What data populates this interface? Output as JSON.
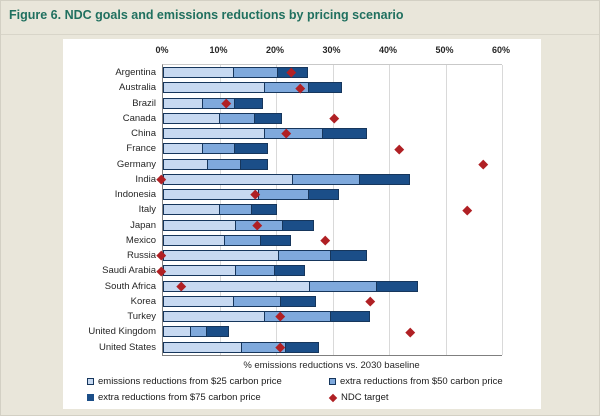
{
  "title": "Figure 6. NDC goals and emissions reductions by pricing scenario",
  "axis": {
    "x_label": "% emissions reductions vs. 2030 baseline",
    "x_ticks": [
      "0%",
      "10%",
      "20%",
      "30%",
      "40%",
      "50%",
      "60%"
    ],
    "x_max": 60
  },
  "legend": {
    "items": [
      {
        "label": "emissions reductions from $25 carbon price",
        "marker": "square",
        "color_key": "bar_25"
      },
      {
        "label": "extra reductions from $50 carbon price",
        "marker": "square",
        "color_key": "bar_50"
      },
      {
        "label": "extra reductions from $75 carbon price",
        "marker": "square",
        "color_key": "bar_75"
      },
      {
        "label": "NDC target",
        "marker": "diamond",
        "color_key": "ndc_red"
      }
    ]
  },
  "colors": {
    "title_teal": "#20705f",
    "page_background": "#e9e6da",
    "panel_background": "#ffffff",
    "bar_25": "#c7d9f1",
    "bar_50": "#7fa9dc",
    "bar_75": "#1b4e88",
    "bar_border": "#16365c",
    "ndc_red": "#b02024",
    "gridline": "#d9d9d9",
    "axis_line": "#7f7f7f"
  },
  "chart_data": {
    "type": "bar",
    "orientation": "horizontal",
    "stacked": true,
    "title": "Figure 6. NDC goals and emissions reductions by pricing scenario",
    "xlabel": "% emissions reductions vs. 2030 baseline",
    "xlim": [
      0,
      60
    ],
    "grid": true,
    "legend_position": "bottom",
    "categories": [
      "Argentina",
      "Australia",
      "Brazil",
      "Canada",
      "China",
      "France",
      "Germany",
      "India",
      "Indonesia",
      "Italy",
      "Japan",
      "Mexico",
      "Russia",
      "Saudi Arabia",
      "South Africa",
      "Korea",
      "Turkey",
      "United Kingdom",
      "United States"
    ],
    "series": [
      {
        "name": "emissions reductions from $25 carbon price",
        "values": [
          12.5,
          18,
          7,
          10,
          18,
          7,
          8,
          23,
          17,
          10,
          13,
          11,
          20.5,
          13,
          26,
          12.5,
          18,
          5,
          14
        ]
      },
      {
        "name": "extra reductions from $50 carbon price",
        "values": [
          8,
          8,
          6,
          6.5,
          10.5,
          6,
          6,
          12,
          9,
          6,
          8.5,
          6.5,
          9.5,
          7,
          12,
          8.5,
          12,
          3,
          8
        ]
      },
      {
        "name": "extra reductions from $75 carbon price",
        "values": [
          5.5,
          6,
          5,
          5,
          8,
          6,
          5,
          9,
          5.5,
          4.5,
          5.5,
          5.5,
          6.5,
          5.5,
          7.5,
          6.5,
          7,
          4,
          6
        ]
      }
    ],
    "markers": {
      "name": "NDC target",
      "shape": "diamond",
      "values": [
        23,
        24.5,
        11.5,
        30.5,
        22,
        42,
        57,
        0,
        16.5,
        54,
        17,
        29,
        0,
        0,
        3.5,
        37,
        21,
        44,
        21
      ]
    }
  }
}
